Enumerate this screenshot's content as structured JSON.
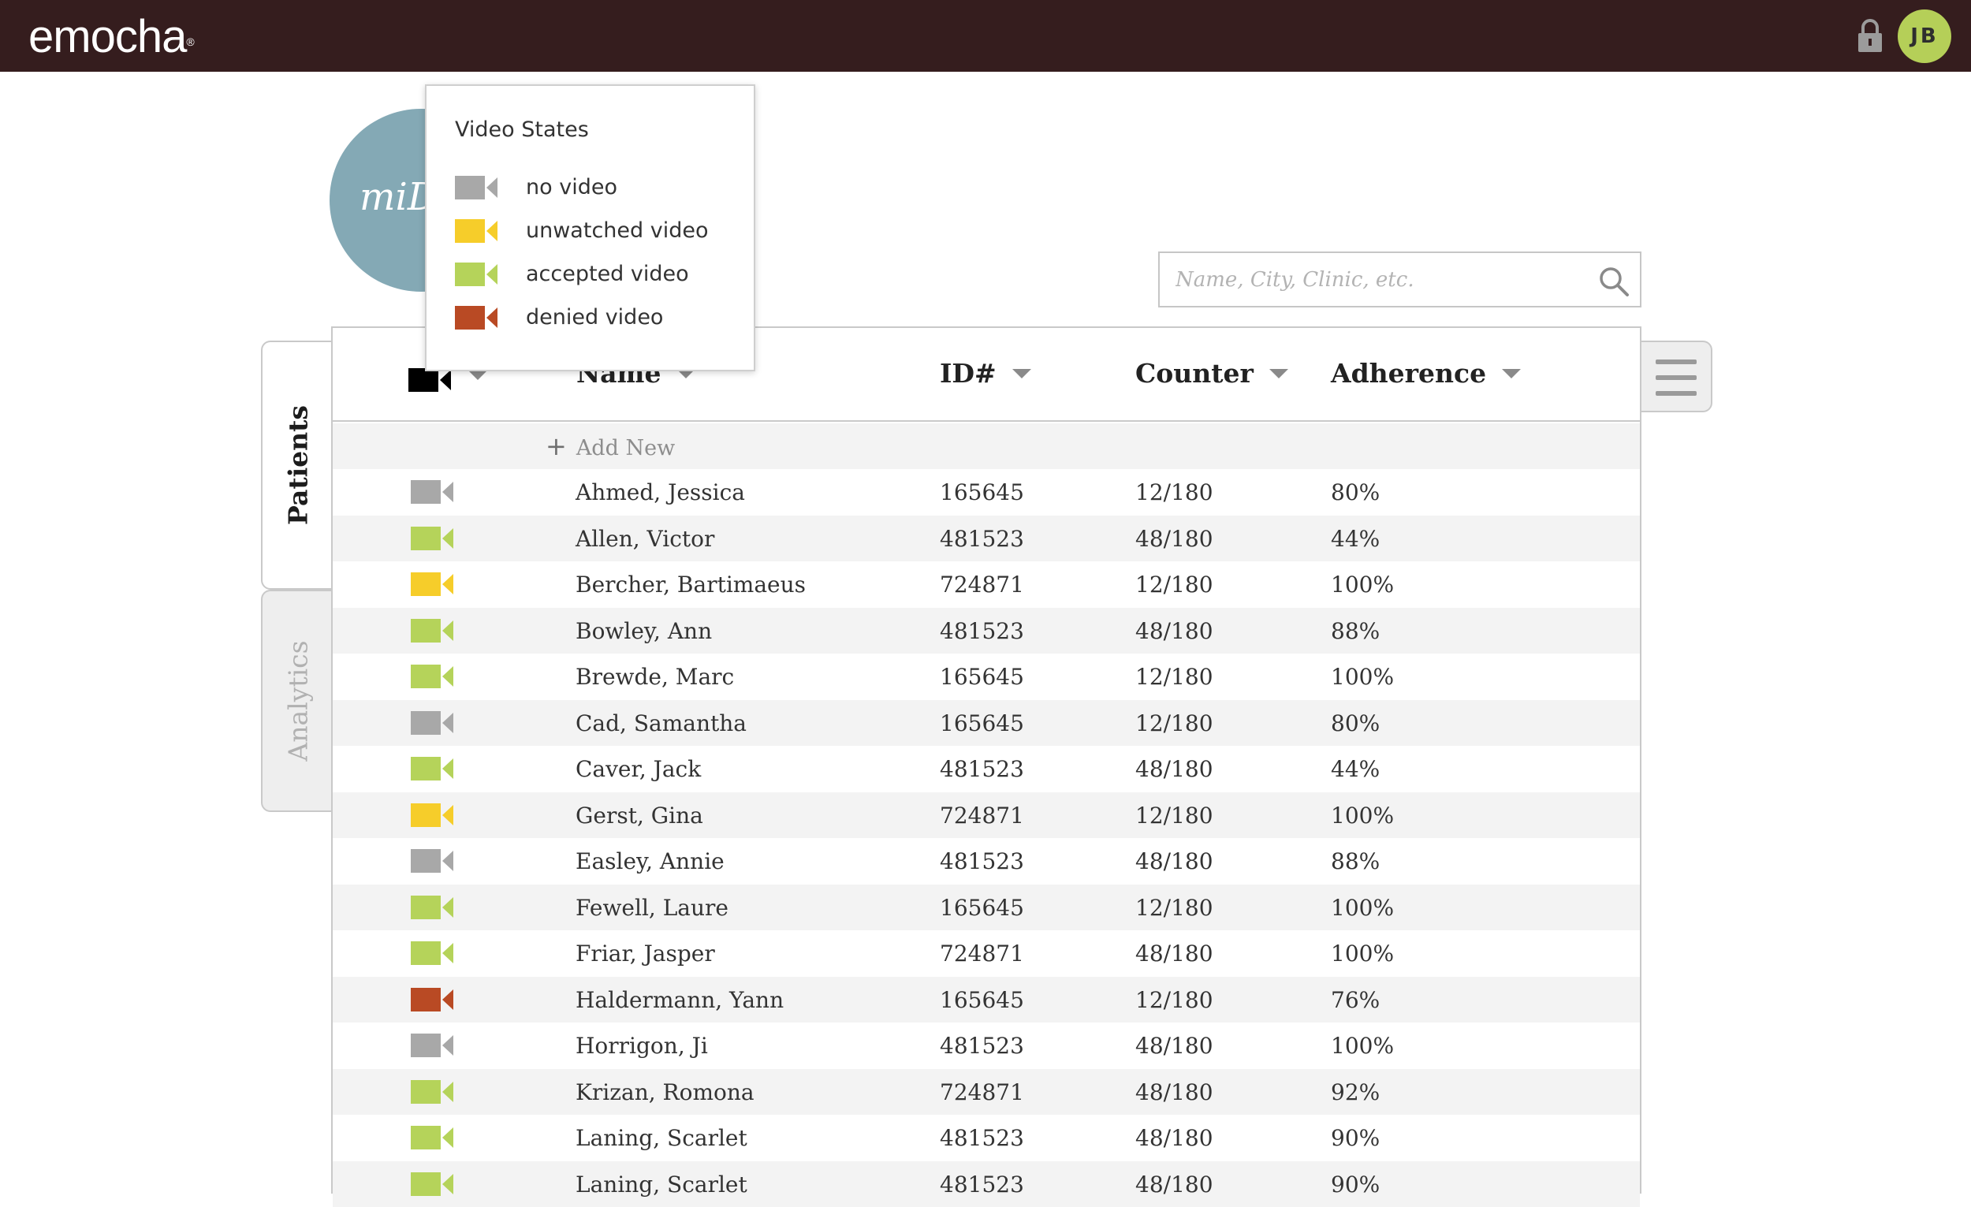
{
  "app": {
    "logo": "emocha",
    "logo_mark": "®",
    "user_initials": "JB"
  },
  "program": {
    "name": "miD"
  },
  "search": {
    "placeholder": "Name, City, Clinic, etc."
  },
  "tabs": [
    {
      "label": "Patients",
      "active": true
    },
    {
      "label": "Analytics",
      "active": false
    }
  ],
  "table": {
    "columns": {
      "name": "Name",
      "id": "ID#",
      "counter": "Counter",
      "adherence": "Adherence"
    },
    "add_new": "Add New",
    "rows": [
      {
        "video": "none",
        "name": "Ahmed, Jessica",
        "id": "165645",
        "counter": "12/180",
        "adherence": "80%"
      },
      {
        "video": "accepted",
        "name": "Allen, Victor",
        "id": "481523",
        "counter": "48/180",
        "adherence": "44%"
      },
      {
        "video": "unwatched",
        "name": "Bercher, Bartimaeus",
        "id": "724871",
        "counter": "12/180",
        "adherence": "100%"
      },
      {
        "video": "accepted",
        "name": "Bowley, Ann",
        "id": "481523",
        "counter": "48/180",
        "adherence": "88%"
      },
      {
        "video": "accepted",
        "name": "Brewde, Marc",
        "id": "165645",
        "counter": "12/180",
        "adherence": "100%"
      },
      {
        "video": "none",
        "name": "Cad, Samantha",
        "id": "165645",
        "counter": "12/180",
        "adherence": "80%"
      },
      {
        "video": "accepted",
        "name": "Caver, Jack",
        "id": "481523",
        "counter": "48/180",
        "adherence": "44%"
      },
      {
        "video": "unwatched",
        "name": "Gerst, Gina",
        "id": "724871",
        "counter": "12/180",
        "adherence": "100%"
      },
      {
        "video": "none",
        "name": "Easley, Annie",
        "id": "481523",
        "counter": "48/180",
        "adherence": "88%"
      },
      {
        "video": "accepted",
        "name": "Fewell, Laure",
        "id": "165645",
        "counter": "12/180",
        "adherence": "100%"
      },
      {
        "video": "accepted",
        "name": "Friar, Jasper",
        "id": "724871",
        "counter": "48/180",
        "adherence": "100%"
      },
      {
        "video": "denied",
        "name": "Haldermann, Yann",
        "id": "165645",
        "counter": "12/180",
        "adherence": "76%"
      },
      {
        "video": "none",
        "name": "Horrigon, Ji",
        "id": "481523",
        "counter": "48/180",
        "adherence": "100%"
      },
      {
        "video": "accepted",
        "name": "Krizan, Romona",
        "id": "724871",
        "counter": "48/180",
        "adherence": "92%"
      },
      {
        "video": "accepted",
        "name": "Laning, Scarlet",
        "id": "481523",
        "counter": "48/180",
        "adherence": "90%"
      },
      {
        "video": "accepted",
        "name": "Laning, Scarlet",
        "id": "481523",
        "counter": "48/180",
        "adherence": "90%"
      }
    ]
  },
  "video_states": {
    "title": "Video States",
    "items": [
      {
        "key": "none",
        "label": "no video"
      },
      {
        "key": "unwatched",
        "label": "unwatched video"
      },
      {
        "key": "accepted",
        "label": "accepted video"
      },
      {
        "key": "denied",
        "label": "denied video"
      }
    ]
  },
  "colors": {
    "topbar": "#351d1e",
    "avatar": "#b5cf58",
    "program_circle": "#84a9b5",
    "video_none": "#a8a8a8",
    "video_unwatched": "#f6cd2a",
    "video_accepted": "#b5d35a",
    "video_denied": "#b94a24",
    "video_header": "#000000"
  }
}
